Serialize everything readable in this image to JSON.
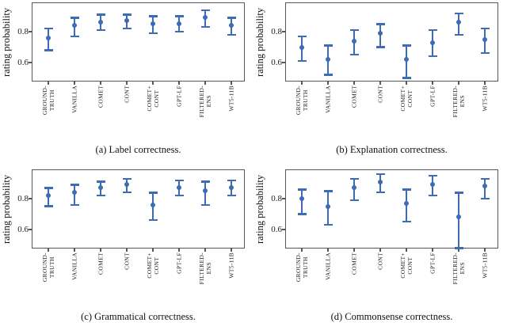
{
  "figure": {
    "background": "#ffffff",
    "accent_color": "#3d6bb5",
    "spine_color": "#55575c",
    "text_color": "#1c1c1c"
  },
  "chart_data": [
    {
      "type": "errorbar",
      "caption": "(a) Label correctness.",
      "ylabel": "rating probability",
      "yticks": [
        0.6,
        0.8
      ],
      "ylim": [
        0.477,
        0.99
      ],
      "grid": false,
      "legend": null,
      "categories": [
        "GROUND-TRUTH",
        "VANILLA",
        "COMET",
        "CONT",
        "COMET+CONT",
        "GPT-LF",
        "FILTERED-ENS",
        "WT5-11B"
      ],
      "category_lines": [
        [
          "GROUND-",
          "TRUTH"
        ],
        [
          "VANILLA"
        ],
        [
          "COMET"
        ],
        [
          "CONT"
        ],
        [
          "COMET+",
          "CONT"
        ],
        [
          "GPT-LF"
        ],
        [
          "FILTERED-",
          "ENS"
        ],
        [
          "WT5-11B"
        ]
      ],
      "values": [
        0.76,
        0.84,
        0.86,
        0.87,
        0.85,
        0.85,
        0.89,
        0.84
      ],
      "err_low": [
        0.68,
        0.77,
        0.81,
        0.82,
        0.79,
        0.8,
        0.83,
        0.78
      ],
      "err_high": [
        0.82,
        0.89,
        0.91,
        0.91,
        0.9,
        0.9,
        0.94,
        0.89
      ]
    },
    {
      "type": "errorbar",
      "caption": "(b) Explanation correctness.",
      "ylabel": "rating probability",
      "yticks": [
        0.6,
        0.8
      ],
      "ylim": [
        0.477,
        0.99
      ],
      "grid": false,
      "legend": null,
      "categories": [
        "GROUND-TRUTH",
        "VANILLA",
        "COMET",
        "CONT",
        "COMET+CONT",
        "GPT-LF",
        "FILTERED-ENS",
        "WT5-11B"
      ],
      "category_lines": [
        [
          "GROUND-",
          "TRUTH"
        ],
        [
          "VANILLA"
        ],
        [
          "COMET"
        ],
        [
          "CONT"
        ],
        [
          "COMET+",
          "CONT"
        ],
        [
          "GPT-LF"
        ],
        [
          "FILTERED-",
          "ENS"
        ],
        [
          "WT5-11B"
        ]
      ],
      "values": [
        0.7,
        0.62,
        0.74,
        0.79,
        0.62,
        0.73,
        0.86,
        0.75
      ],
      "err_low": [
        0.61,
        0.52,
        0.65,
        0.7,
        0.5,
        0.64,
        0.78,
        0.66
      ],
      "err_high": [
        0.77,
        0.71,
        0.81,
        0.85,
        0.71,
        0.81,
        0.92,
        0.82
      ]
    },
    {
      "type": "errorbar",
      "caption": "(c) Grammatical correctness.",
      "ylabel": "rating probability",
      "yticks": [
        0.6,
        0.8
      ],
      "ylim": [
        0.477,
        0.99
      ],
      "grid": false,
      "legend": null,
      "categories": [
        "GROUND-TRUTH",
        "VANILLA",
        "COMET",
        "CONT",
        "COMET+CONT",
        "GPT-LF",
        "FILTERED-ENS",
        "WT5-11B"
      ],
      "category_lines": [
        [
          "GROUND-",
          "TRUTH"
        ],
        [
          "VANILLA"
        ],
        [
          "COMET"
        ],
        [
          "CONT"
        ],
        [
          "COMET+",
          "CONT"
        ],
        [
          "GPT-LF"
        ],
        [
          "FILTERED-",
          "ENS"
        ],
        [
          "WT5-11B"
        ]
      ],
      "values": [
        0.82,
        0.84,
        0.87,
        0.89,
        0.76,
        0.87,
        0.85,
        0.87
      ],
      "err_low": [
        0.75,
        0.76,
        0.82,
        0.84,
        0.66,
        0.82,
        0.76,
        0.82
      ],
      "err_high": [
        0.87,
        0.89,
        0.91,
        0.93,
        0.84,
        0.92,
        0.91,
        0.92
      ]
    },
    {
      "type": "errorbar",
      "caption": "(d) Commonsense correctness.",
      "ylabel": "rating probability",
      "yticks": [
        0.6,
        0.8
      ],
      "ylim": [
        0.477,
        0.99
      ],
      "grid": false,
      "legend": null,
      "categories": [
        "GROUND-TRUTH",
        "VANILLA",
        "COMET",
        "CONT",
        "COMET+CONT",
        "GPT-LF",
        "FILTERED-ENS",
        "WT5-11B"
      ],
      "category_lines": [
        [
          "GROUND-",
          "TRUTH"
        ],
        [
          "VANILLA"
        ],
        [
          "COMET"
        ],
        [
          "CONT"
        ],
        [
          "COMET+",
          "CONT"
        ],
        [
          "GPT-LF"
        ],
        [
          "FILTERED-",
          "ENS"
        ],
        [
          "WT5-11B"
        ]
      ],
      "values": [
        0.8,
        0.75,
        0.87,
        0.91,
        0.77,
        0.89,
        0.68,
        0.88
      ],
      "err_low": [
        0.7,
        0.63,
        0.79,
        0.84,
        0.65,
        0.82,
        0.48,
        0.8
      ],
      "err_high": [
        0.86,
        0.85,
        0.93,
        0.96,
        0.86,
        0.95,
        0.84,
        0.93
      ]
    }
  ]
}
